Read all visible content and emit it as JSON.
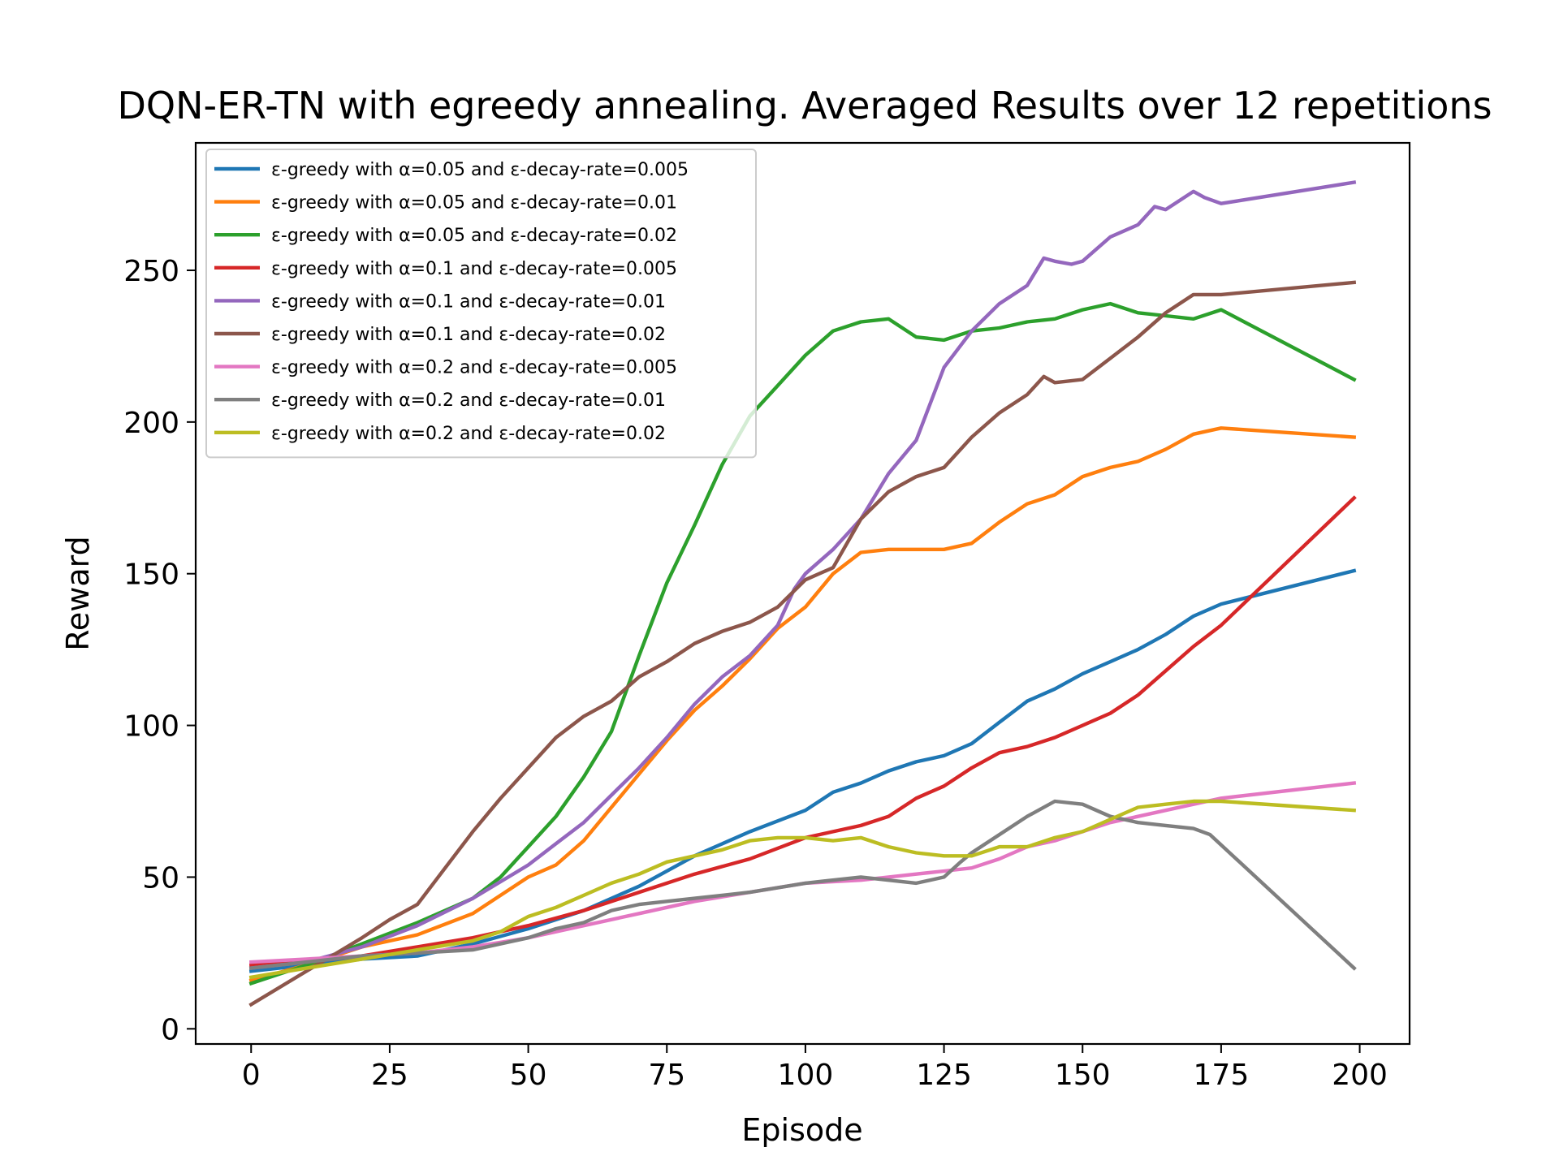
{
  "chart_data": {
    "type": "line",
    "title": "DQN-ER-TN with egreedy annealing. Averaged Results over 12 repetitions",
    "xlabel": "Episode",
    "ylabel": "Reward",
    "xlim": [
      -10,
      209
    ],
    "ylim": [
      -5,
      292
    ],
    "xticks": [
      0,
      25,
      50,
      75,
      100,
      125,
      150,
      175,
      200
    ],
    "yticks": [
      0,
      50,
      100,
      150,
      200,
      250
    ],
    "grid": false,
    "legend_position": "top-left",
    "series": [
      {
        "name": "ε-greedy with α=0.05 and ε-decay-rate=0.005",
        "color": "#1f77b4",
        "points": [
          [
            0,
            19
          ],
          [
            10,
            21
          ],
          [
            20,
            23
          ],
          [
            30,
            24
          ],
          [
            40,
            28
          ],
          [
            50,
            33
          ],
          [
            60,
            39
          ],
          [
            70,
            47
          ],
          [
            80,
            57
          ],
          [
            90,
            65
          ],
          [
            100,
            72
          ],
          [
            105,
            78
          ],
          [
            110,
            81
          ],
          [
            115,
            85
          ],
          [
            120,
            88
          ],
          [
            125,
            90
          ],
          [
            130,
            94
          ],
          [
            135,
            101
          ],
          [
            140,
            108
          ],
          [
            145,
            112
          ],
          [
            150,
            117
          ],
          [
            155,
            121
          ],
          [
            160,
            125
          ],
          [
            165,
            130
          ],
          [
            170,
            136
          ],
          [
            175,
            140
          ],
          [
            199,
            151
          ]
        ]
      },
      {
        "name": "ε-greedy with α=0.05 and ε-decay-rate=0.01",
        "color": "#ff7f0e",
        "points": [
          [
            0,
            16
          ],
          [
            10,
            21
          ],
          [
            20,
            27
          ],
          [
            30,
            31
          ],
          [
            40,
            38
          ],
          [
            50,
            50
          ],
          [
            55,
            54
          ],
          [
            60,
            62
          ],
          [
            65,
            73
          ],
          [
            70,
            84
          ],
          [
            75,
            95
          ],
          [
            80,
            105
          ],
          [
            85,
            113
          ],
          [
            90,
            122
          ],
          [
            95,
            132
          ],
          [
            100,
            139
          ],
          [
            105,
            150
          ],
          [
            110,
            157
          ],
          [
            115,
            158
          ],
          [
            120,
            158
          ],
          [
            125,
            158
          ],
          [
            130,
            160
          ],
          [
            135,
            167
          ],
          [
            140,
            173
          ],
          [
            145,
            176
          ],
          [
            150,
            182
          ],
          [
            155,
            185
          ],
          [
            160,
            187
          ],
          [
            165,
            191
          ],
          [
            170,
            196
          ],
          [
            175,
            198
          ],
          [
            199,
            195
          ]
        ]
      },
      {
        "name": "ε-greedy with α=0.05 and ε-decay-rate=0.02",
        "color": "#2ca02c",
        "points": [
          [
            0,
            15
          ],
          [
            10,
            21
          ],
          [
            20,
            28
          ],
          [
            30,
            35
          ],
          [
            40,
            43
          ],
          [
            45,
            50
          ],
          [
            50,
            60
          ],
          [
            55,
            70
          ],
          [
            60,
            83
          ],
          [
            65,
            98
          ],
          [
            70,
            123
          ],
          [
            75,
            147
          ],
          [
            80,
            166
          ],
          [
            85,
            186
          ],
          [
            90,
            202
          ],
          [
            95,
            212
          ],
          [
            100,
            222
          ],
          [
            105,
            230
          ],
          [
            110,
            233
          ],
          [
            115,
            234
          ],
          [
            120,
            228
          ],
          [
            125,
            227
          ],
          [
            130,
            230
          ],
          [
            135,
            231
          ],
          [
            140,
            233
          ],
          [
            145,
            234
          ],
          [
            150,
            237
          ],
          [
            155,
            239
          ],
          [
            160,
            236
          ],
          [
            165,
            235
          ],
          [
            170,
            234
          ],
          [
            175,
            237
          ],
          [
            199,
            214
          ]
        ]
      },
      {
        "name": "ε-greedy with α=0.1 and ε-decay-rate=0.005",
        "color": "#d62728",
        "points": [
          [
            0,
            21
          ],
          [
            10,
            22
          ],
          [
            20,
            24
          ],
          [
            30,
            27
          ],
          [
            40,
            30
          ],
          [
            50,
            34
          ],
          [
            60,
            39
          ],
          [
            70,
            45
          ],
          [
            80,
            51
          ],
          [
            90,
            56
          ],
          [
            100,
            63
          ],
          [
            105,
            65
          ],
          [
            110,
            67
          ],
          [
            115,
            70
          ],
          [
            120,
            76
          ],
          [
            125,
            80
          ],
          [
            130,
            86
          ],
          [
            135,
            91
          ],
          [
            140,
            93
          ],
          [
            145,
            96
          ],
          [
            150,
            100
          ],
          [
            155,
            104
          ],
          [
            160,
            110
          ],
          [
            165,
            118
          ],
          [
            170,
            126
          ],
          [
            175,
            133
          ],
          [
            199,
            175
          ]
        ]
      },
      {
        "name": "ε-greedy with α=0.1 and ε-decay-rate=0.01",
        "color": "#9467bd",
        "points": [
          [
            0,
            20
          ],
          [
            10,
            22
          ],
          [
            20,
            27
          ],
          [
            30,
            34
          ],
          [
            40,
            43
          ],
          [
            50,
            54
          ],
          [
            55,
            61
          ],
          [
            60,
            68
          ],
          [
            65,
            77
          ],
          [
            70,
            86
          ],
          [
            75,
            96
          ],
          [
            80,
            107
          ],
          [
            85,
            116
          ],
          [
            90,
            123
          ],
          [
            95,
            133
          ],
          [
            98,
            145
          ],
          [
            100,
            150
          ],
          [
            105,
            158
          ],
          [
            110,
            168
          ],
          [
            115,
            183
          ],
          [
            120,
            194
          ],
          [
            125,
            218
          ],
          [
            130,
            230
          ],
          [
            135,
            239
          ],
          [
            140,
            245
          ],
          [
            143,
            254
          ],
          [
            145,
            253
          ],
          [
            148,
            252
          ],
          [
            150,
            253
          ],
          [
            155,
            261
          ],
          [
            160,
            265
          ],
          [
            163,
            271
          ],
          [
            165,
            270
          ],
          [
            170,
            276
          ],
          [
            172,
            274
          ],
          [
            175,
            272
          ],
          [
            199,
            279
          ]
        ]
      },
      {
        "name": "ε-greedy with α=0.1 and ε-decay-rate=0.02",
        "color": "#8c564b",
        "points": [
          [
            0,
            8
          ],
          [
            10,
            19
          ],
          [
            20,
            30
          ],
          [
            25,
            36
          ],
          [
            30,
            41
          ],
          [
            35,
            53
          ],
          [
            40,
            65
          ],
          [
            45,
            76
          ],
          [
            50,
            86
          ],
          [
            55,
            96
          ],
          [
            60,
            103
          ],
          [
            65,
            108
          ],
          [
            70,
            116
          ],
          [
            75,
            121
          ],
          [
            80,
            127
          ],
          [
            85,
            131
          ],
          [
            90,
            134
          ],
          [
            95,
            139
          ],
          [
            100,
            148
          ],
          [
            105,
            152
          ],
          [
            110,
            168
          ],
          [
            115,
            177
          ],
          [
            120,
            182
          ],
          [
            125,
            185
          ],
          [
            130,
            195
          ],
          [
            135,
            203
          ],
          [
            140,
            209
          ],
          [
            143,
            215
          ],
          [
            145,
            213
          ],
          [
            150,
            214
          ],
          [
            155,
            221
          ],
          [
            160,
            228
          ],
          [
            165,
            236
          ],
          [
            170,
            242
          ],
          [
            175,
            242
          ],
          [
            199,
            246
          ]
        ]
      },
      {
        "name": "ε-greedy with α=0.2 and ε-decay-rate=0.005",
        "color": "#e377c2",
        "points": [
          [
            0,
            22
          ],
          [
            10,
            23
          ],
          [
            20,
            24
          ],
          [
            30,
            25
          ],
          [
            40,
            27
          ],
          [
            50,
            30
          ],
          [
            60,
            34
          ],
          [
            70,
            38
          ],
          [
            80,
            42
          ],
          [
            90,
            45
          ],
          [
            100,
            48
          ],
          [
            110,
            49
          ],
          [
            120,
            51
          ],
          [
            125,
            52
          ],
          [
            130,
            53
          ],
          [
            135,
            56
          ],
          [
            140,
            60
          ],
          [
            145,
            62
          ],
          [
            150,
            65
          ],
          [
            155,
            68
          ],
          [
            160,
            70
          ],
          [
            165,
            72
          ],
          [
            170,
            74
          ],
          [
            175,
            76
          ],
          [
            199,
            81
          ]
        ]
      },
      {
        "name": "ε-greedy with α=0.2 and ε-decay-rate=0.01",
        "color": "#7f7f7f",
        "points": [
          [
            0,
            20
          ],
          [
            10,
            22
          ],
          [
            20,
            24
          ],
          [
            30,
            25
          ],
          [
            40,
            26
          ],
          [
            50,
            30
          ],
          [
            55,
            33
          ],
          [
            60,
            35
          ],
          [
            65,
            39
          ],
          [
            70,
            41
          ],
          [
            80,
            43
          ],
          [
            90,
            45
          ],
          [
            100,
            48
          ],
          [
            110,
            50
          ],
          [
            115,
            49
          ],
          [
            120,
            48
          ],
          [
            125,
            50
          ],
          [
            128,
            55
          ],
          [
            130,
            58
          ],
          [
            135,
            64
          ],
          [
            140,
            70
          ],
          [
            145,
            75
          ],
          [
            150,
            74
          ],
          [
            155,
            70
          ],
          [
            160,
            68
          ],
          [
            165,
            67
          ],
          [
            170,
            66
          ],
          [
            173,
            64
          ],
          [
            199,
            20
          ]
        ]
      },
      {
        "name": "ε-greedy with α=0.2 and ε-decay-rate=0.02",
        "color": "#bcbd22",
        "points": [
          [
            0,
            17
          ],
          [
            10,
            20
          ],
          [
            20,
            23
          ],
          [
            30,
            26
          ],
          [
            40,
            29
          ],
          [
            45,
            32
          ],
          [
            50,
            37
          ],
          [
            55,
            40
          ],
          [
            60,
            44
          ],
          [
            65,
            48
          ],
          [
            70,
            51
          ],
          [
            75,
            55
          ],
          [
            80,
            57
          ],
          [
            85,
            59
          ],
          [
            90,
            62
          ],
          [
            95,
            63
          ],
          [
            100,
            63
          ],
          [
            105,
            62
          ],
          [
            110,
            63
          ],
          [
            115,
            60
          ],
          [
            120,
            58
          ],
          [
            125,
            57
          ],
          [
            130,
            57
          ],
          [
            135,
            60
          ],
          [
            140,
            60
          ],
          [
            145,
            63
          ],
          [
            150,
            65
          ],
          [
            155,
            69
          ],
          [
            160,
            73
          ],
          [
            165,
            74
          ],
          [
            170,
            75
          ],
          [
            175,
            75
          ],
          [
            199,
            72
          ]
        ]
      }
    ]
  }
}
